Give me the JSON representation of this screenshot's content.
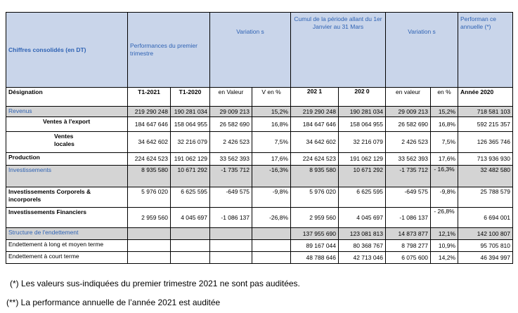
{
  "header": {
    "c1": "Chiffres consolidés  (en DT)",
    "c2": "Performances  du  premier trimestre",
    "c3": "Variation s",
    "c4": "Cumul  de la période  allant  du 1er Janvier  au 31 Mars",
    "c5": "Variation s",
    "c6": "Performan ce annuelle (*)"
  },
  "subheader": {
    "designation": "Désignation",
    "t1_2021": "T1-2021",
    "t1_2020": "T1-2020",
    "en_valeur": "en  Valeur",
    "v_en_pct": "V en  %",
    "cumul_2021": "202 1",
    "cumul_2020": "202 0",
    "en_valeur2": "en  valeur",
    "en_pct2": "en  %",
    "annee_2020": "Année 2020"
  },
  "rows": [
    {
      "label": "Revenus",
      "v1": "219 290 248",
      "v2": "190 281 034",
      "v3": "29 009 213",
      "v4": "15,2%",
      "v5": "219 290 248",
      "v6": "190 281 034",
      "v7": "29 009 213",
      "v8": "15,2%",
      "v9": "718 581 103"
    },
    {
      "label": "Ventes  à l'export",
      "v1": "184 647 646",
      "v2": "158 064 955",
      "v3": "26 582 690",
      "v4": "16,8%",
      "v5": "184 647 646",
      "v6": "158 064 955",
      "v7": "26 582 690",
      "v8": "16,8%",
      "v9": "592 215 357"
    },
    {
      "label": "Ventes locales",
      "v1": "34 642 602",
      "v2": "32 216 079",
      "v3": "2 426 523",
      "v4": "7,5%",
      "v5": "34 642 602",
      "v6": "32 216 079",
      "v7": "2 426 523",
      "v8": "7,5%",
      "v9": "126 365 746"
    },
    {
      "label": "Production",
      "v1": "224 624 523",
      "v2": "191 062 129",
      "v3": "33 562 393",
      "v4": "17,6%",
      "v5": "224 624 523",
      "v6": "191 062 129",
      "v7": "33 562 393",
      "v8": "17,6%",
      "v9": "713 936 930"
    },
    {
      "label": "Investissements",
      "v1": "8 935 580",
      "v2": "10 671 292",
      "v3": "-1 735 712",
      "v4": "-16,3%",
      "v5": "8 935 580",
      "v6": "10 671 292",
      "v7": "-1 735 712",
      "v8": "- 16,3%",
      "v9": "32 482 580"
    },
    {
      "label": "Investissements  Corporels  & incorporels",
      "v1": "5 976 020",
      "v2": "6 625 595",
      "v3": "-649 575",
      "v4": "-9,8%",
      "v5": "5 976 020",
      "v6": "6 625 595",
      "v7": "-649 575",
      "v8": "-9,8%",
      "v9": "25 788 579"
    },
    {
      "label": "Investissements  Financiers",
      "v1": "2 959 560",
      "v2": "4 045 697",
      "v3": "-1 086 137",
      "v4": "-26,8%",
      "v5": "2 959 560",
      "v6": "4 045 697",
      "v7": "-1 086 137",
      "v8": "- 26,8%",
      "v9": "6 694 001"
    },
    {
      "label": "Structure  de  l'endettement",
      "v5": "137 955 690",
      "v6": "123 081 813",
      "v7": "14 873 877",
      "v8": "12,1%",
      "v9": "142 100 807"
    },
    {
      "label": "Endettement à long et moyen terme",
      "v5": "89 167 044",
      "v6": "80 368 767",
      "v7": "8 798 277",
      "v8": "10,9%",
      "v9": "95 705 810"
    },
    {
      "label": "Endettement à court terme",
      "v5": "48 788 646",
      "v6": "42 713 046",
      "v7": "6 075 600",
      "v8": "14,2%",
      "v9": "46 394 997"
    }
  ],
  "notes": {
    "n1": "(*) Les valeurs sus-indiquées du premier trimestre 2021 ne sont pas auditées.",
    "n2": "(**) La performance annuelle de l’année 2021 est auditée"
  }
}
